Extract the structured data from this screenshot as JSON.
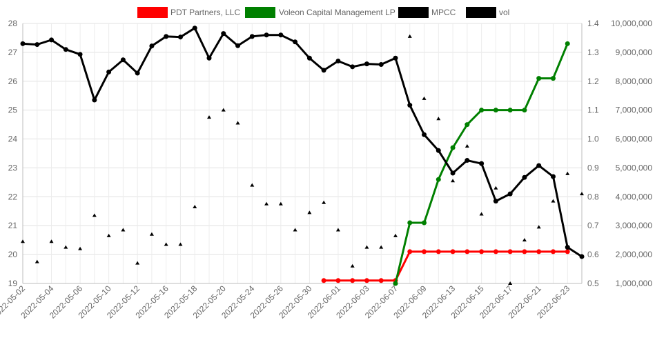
{
  "chart_data": {
    "type": "line",
    "categories": [
      "2022-05-02",
      "2022-05-03",
      "2022-05-04",
      "2022-05-05",
      "2022-05-06",
      "2022-05-09",
      "2022-05-10",
      "2022-05-11",
      "2022-05-12",
      "2022-05-13",
      "2022-05-16",
      "2022-05-17",
      "2022-05-18",
      "2022-05-19",
      "2022-05-20",
      "2022-05-23",
      "2022-05-24",
      "2022-05-25",
      "2022-05-26",
      "2022-05-27",
      "2022-05-30",
      "2022-05-31",
      "2022-06-01",
      "2022-06-02",
      "2022-06-03",
      "2022-06-06",
      "2022-06-07",
      "2022-06-08",
      "2022-06-09",
      "2022-06-10",
      "2022-06-13",
      "2022-06-14",
      "2022-06-15",
      "2022-06-16",
      "2022-06-17",
      "2022-06-20",
      "2022-06-21",
      "2022-06-22",
      "2022-06-23",
      "2022-06-24"
    ],
    "tick_labels": [
      "2022-05-02",
      "2022-05-04",
      "2022-05-06",
      "2022-05-10",
      "2022-05-12",
      "2022-05-16",
      "2022-05-18",
      "2022-05-20",
      "2022-05-24",
      "2022-05-26",
      "2022-05-30",
      "2022-06-01",
      "2022-06-03",
      "2022-06-07",
      "2022-06-09",
      "2022-06-13",
      "2022-06-15",
      "2022-06-17",
      "2022-06-21",
      "2022-06-23"
    ],
    "y_left": {
      "min": 19,
      "max": 28,
      "ticks": [
        "19",
        "20",
        "21",
        "22",
        "23",
        "24",
        "25",
        "26",
        "27",
        "28"
      ]
    },
    "y_right1": {
      "min": 0.5,
      "max": 1.4,
      "ticks": [
        "0.5",
        "0.6",
        "0.7",
        "0.8",
        "0.9",
        "1.0",
        "1.1",
        "1.2",
        "1.3",
        "1.4"
      ]
    },
    "y_right2": {
      "min": 1000000,
      "max": 10000000,
      "ticks": [
        "1,000,000",
        "2,000,000",
        "3,000,000",
        "4,000,000",
        "5,000,000",
        "6,000,000",
        "7,000,000",
        "8,000,000",
        "9,000,000",
        "10,000,000"
      ]
    },
    "grid": true,
    "legend_position": "top",
    "series": [
      {
        "name": "PDT Partners, LLC",
        "color": "#ff0000",
        "axis": "right1",
        "values": [
          null,
          null,
          null,
          null,
          null,
          null,
          null,
          null,
          null,
          null,
          null,
          null,
          null,
          null,
          null,
          null,
          null,
          null,
          null,
          null,
          null,
          0.51,
          0.51,
          0.51,
          0.51,
          0.51,
          0.51,
          0.61,
          0.61,
          0.61,
          0.61,
          0.61,
          0.61,
          0.61,
          0.61,
          0.61,
          0.61,
          0.61,
          0.61,
          null
        ]
      },
      {
        "name": "Voleon Capital Management LP",
        "color": "#008000",
        "axis": "right1",
        "values": [
          null,
          null,
          null,
          null,
          null,
          null,
          null,
          null,
          null,
          null,
          null,
          null,
          null,
          null,
          null,
          null,
          null,
          null,
          null,
          null,
          null,
          null,
          null,
          null,
          null,
          null,
          0.5,
          0.71,
          0.71,
          0.86,
          0.97,
          1.05,
          1.1,
          1.1,
          1.1,
          1.1,
          1.21,
          1.21,
          1.33,
          null
        ]
      },
      {
        "name": "MPCC",
        "color": "#000000",
        "axis": "left",
        "values": [
          27.3,
          27.27,
          27.43,
          27.1,
          26.93,
          25.35,
          26.32,
          26.74,
          26.28,
          27.22,
          27.55,
          27.53,
          27.84,
          26.8,
          27.65,
          27.23,
          27.55,
          27.6,
          27.6,
          27.36,
          26.8,
          26.38,
          26.7,
          26.5,
          26.6,
          26.58,
          26.8,
          25.17,
          24.15,
          23.6,
          22.82,
          23.26,
          23.15,
          21.85,
          22.1,
          22.67,
          23.08,
          22.7,
          20.25,
          19.93
        ]
      },
      {
        "name": "vol",
        "color": "#000000",
        "axis": "right2",
        "style": "triangle-points",
        "values": [
          2450000,
          1750000,
          2450000,
          2250000,
          2200000,
          3350000,
          2650000,
          2850000,
          1700000,
          2700000,
          2350000,
          2350000,
          3650000,
          6750000,
          7000000,
          6550000,
          4400000,
          3750000,
          3750000,
          2850000,
          3450000,
          3800000,
          2850000,
          1600000,
          2250000,
          2250000,
          2650000,
          9550000,
          7400000,
          6700000,
          4550000,
          5750000,
          3400000,
          4300000,
          1000000,
          2500000,
          2950000,
          3850000,
          4800000,
          4100000
        ]
      }
    ]
  }
}
